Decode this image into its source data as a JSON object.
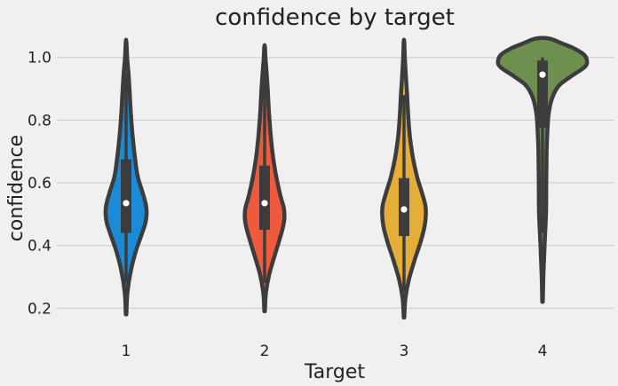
{
  "chart_data": {
    "type": "violin",
    "title": "confidence by target",
    "xlabel": "Target",
    "ylabel": "confidence",
    "categories": [
      "1",
      "2",
      "3",
      "4"
    ],
    "ylim": [
      0.13,
      1.07
    ],
    "yticks": [
      0.2,
      0.4,
      0.6,
      0.8,
      1.0
    ],
    "grid": "horizontal",
    "violins": [
      {
        "category": "1",
        "color": "#1a8bd4",
        "min": 0.18,
        "max": 1.05,
        "q1": 0.44,
        "median": 0.535,
        "q3": 0.675,
        "whisker_low": 0.28,
        "whisker_high": 0.95,
        "profile": [
          [
            0.18,
            0.004
          ],
          [
            0.25,
            0.02
          ],
          [
            0.32,
            0.07
          ],
          [
            0.38,
            0.14
          ],
          [
            0.43,
            0.22
          ],
          [
            0.47,
            0.28
          ],
          [
            0.5,
            0.3
          ],
          [
            0.53,
            0.29
          ],
          [
            0.57,
            0.24
          ],
          [
            0.62,
            0.17
          ],
          [
            0.68,
            0.13
          ],
          [
            0.75,
            0.095
          ],
          [
            0.82,
            0.07
          ],
          [
            0.9,
            0.05
          ],
          [
            0.95,
            0.035
          ],
          [
            1.0,
            0.015
          ],
          [
            1.05,
            0.004
          ]
        ]
      },
      {
        "category": "2",
        "color": "#ef5a3c",
        "min": 0.19,
        "max": 1.035,
        "q1": 0.45,
        "median": 0.535,
        "q3": 0.655,
        "whisker_low": 0.28,
        "whisker_high": 0.95,
        "profile": [
          [
            0.19,
            0.004
          ],
          [
            0.25,
            0.02
          ],
          [
            0.31,
            0.07
          ],
          [
            0.37,
            0.15
          ],
          [
            0.42,
            0.22
          ],
          [
            0.46,
            0.27
          ],
          [
            0.49,
            0.29
          ],
          [
            0.52,
            0.28
          ],
          [
            0.56,
            0.23
          ],
          [
            0.62,
            0.17
          ],
          [
            0.68,
            0.125
          ],
          [
            0.75,
            0.09
          ],
          [
            0.82,
            0.065
          ],
          [
            0.9,
            0.045
          ],
          [
            0.95,
            0.03
          ],
          [
            1.0,
            0.012
          ],
          [
            1.035,
            0.004
          ]
        ]
      },
      {
        "category": "3",
        "color": "#e5ae38",
        "min": 0.17,
        "max": 1.05,
        "q1": 0.43,
        "median": 0.515,
        "q3": 0.615,
        "whisker_low": 0.25,
        "whisker_high": 0.88,
        "profile": [
          [
            0.17,
            0.004
          ],
          [
            0.23,
            0.02
          ],
          [
            0.29,
            0.07
          ],
          [
            0.35,
            0.15
          ],
          [
            0.41,
            0.24
          ],
          [
            0.46,
            0.3
          ],
          [
            0.5,
            0.32
          ],
          [
            0.53,
            0.31
          ],
          [
            0.57,
            0.26
          ],
          [
            0.62,
            0.19
          ],
          [
            0.68,
            0.13
          ],
          [
            0.75,
            0.085
          ],
          [
            0.82,
            0.06
          ],
          [
            0.88,
            0.045
          ],
          [
            0.95,
            0.025
          ],
          [
            1.0,
            0.012
          ],
          [
            1.05,
            0.004
          ]
        ]
      },
      {
        "category": "4",
        "color": "#6d904f",
        "min": 0.22,
        "max": 1.06,
        "q1": 0.775,
        "median": 0.945,
        "q3": 0.99,
        "whisker_low": 0.44,
        "whisker_high": 1.0,
        "profile": [
          [
            0.22,
            0.004
          ],
          [
            0.3,
            0.012
          ],
          [
            0.4,
            0.03
          ],
          [
            0.5,
            0.05
          ],
          [
            0.6,
            0.055
          ],
          [
            0.7,
            0.06
          ],
          [
            0.76,
            0.07
          ],
          [
            0.82,
            0.09
          ],
          [
            0.87,
            0.14
          ],
          [
            0.91,
            0.24
          ],
          [
            0.94,
            0.42
          ],
          [
            0.97,
            0.62
          ],
          [
            0.99,
            0.65
          ],
          [
            1.01,
            0.6
          ],
          [
            1.03,
            0.45
          ],
          [
            1.045,
            0.28
          ],
          [
            1.06,
            0.1
          ]
        ]
      }
    ]
  }
}
